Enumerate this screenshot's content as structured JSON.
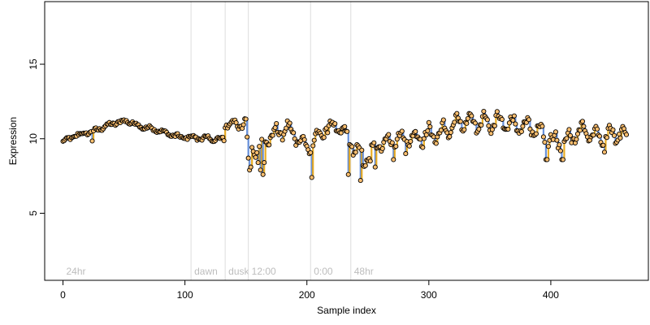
{
  "chart_data": {
    "type": "scatter",
    "title": "",
    "xlabel": "Sample index",
    "ylabel": "Expression",
    "xlim": [
      -15,
      480
    ],
    "ylim": [
      0.5,
      19.2
    ],
    "x_ticks": [
      0,
      100,
      200,
      300,
      400
    ],
    "y_ticks": [
      5,
      10,
      15
    ],
    "grid": false,
    "legend": "none",
    "colors": {
      "point_fill": "#fdbf6f",
      "point_stroke": "#000000",
      "segment_up": "#e69f00",
      "segment_down": "#4f7fd6",
      "marker_line": "#dddddd",
      "marker_text": "#bdbdbd"
    },
    "markers": [
      {
        "x": 0,
        "label": "24hr",
        "line": false
      },
      {
        "x": 105,
        "label": "dawn",
        "line": true
      },
      {
        "x": 133,
        "label": "dusk",
        "line": true
      },
      {
        "x": 152,
        "label": "12:00",
        "line": true
      },
      {
        "x": 203,
        "label": "0:00",
        "line": true
      },
      {
        "x": 236,
        "label": "48hr",
        "line": true
      }
    ],
    "anchors": [
      [
        0,
        9.8
      ],
      [
        10,
        10.2
      ],
      [
        25,
        10.5
      ],
      [
        40,
        11.0
      ],
      [
        52,
        11.2
      ],
      [
        65,
        10.8
      ],
      [
        80,
        10.5
      ],
      [
        95,
        10.1
      ],
      [
        105,
        10.1
      ],
      [
        120,
        10.0
      ],
      [
        132,
        9.9
      ],
      [
        133,
        11.0
      ],
      [
        150,
        11.0
      ],
      [
        151,
        9.9
      ],
      [
        158,
        9.2
      ],
      [
        170,
        10.2
      ],
      [
        182,
        10.6
      ],
      [
        190,
        10.3
      ],
      [
        200,
        9.4
      ],
      [
        204,
        9.6
      ],
      [
        215,
        10.7
      ],
      [
        225,
        10.8
      ],
      [
        235,
        10.0
      ],
      [
        240,
        9.2
      ],
      [
        248,
        8.6
      ],
      [
        258,
        9.6
      ],
      [
        272,
        10.0
      ],
      [
        290,
        10.0
      ],
      [
        305,
        10.3
      ],
      [
        320,
        10.8
      ],
      [
        330,
        11.2
      ],
      [
        345,
        11.0
      ],
      [
        360,
        11.2
      ],
      [
        372,
        10.9
      ],
      [
        385,
        10.8
      ],
      [
        395,
        10.3
      ],
      [
        402,
        9.8
      ],
      [
        410,
        9.6
      ],
      [
        425,
        10.6
      ],
      [
        440,
        10.0
      ],
      [
        450,
        10.4
      ],
      [
        462,
        10.2
      ]
    ],
    "wave_amp": [
      [
        0,
        0.08
      ],
      [
        130,
        0.12
      ],
      [
        151,
        0.4
      ],
      [
        230,
        0.4
      ],
      [
        290,
        0.4
      ],
      [
        300,
        0.55
      ],
      [
        462,
        0.5
      ]
    ],
    "outliers": [
      [
        24,
        9.85
      ],
      [
        152,
        8.7
      ],
      [
        153,
        7.9
      ],
      [
        154,
        8.1
      ],
      [
        157,
        8.9
      ],
      [
        160,
        8.4
      ],
      [
        162,
        7.9
      ],
      [
        164,
        7.6
      ],
      [
        165,
        8.4
      ],
      [
        184,
        11.2
      ],
      [
        204,
        7.4
      ],
      [
        234,
        7.6
      ],
      [
        238,
        8.9
      ],
      [
        244,
        7.2
      ],
      [
        246,
        8.2
      ],
      [
        252,
        8.5
      ],
      [
        256,
        8.1
      ],
      [
        271,
        8.6
      ],
      [
        281,
        9.0
      ],
      [
        396,
        8.6
      ],
      [
        397,
        8.6
      ],
      [
        409,
        8.6
      ],
      [
        410,
        8.6
      ],
      [
        444,
        9.1
      ]
    ],
    "n_points": 463,
    "noise": 0.18
  }
}
